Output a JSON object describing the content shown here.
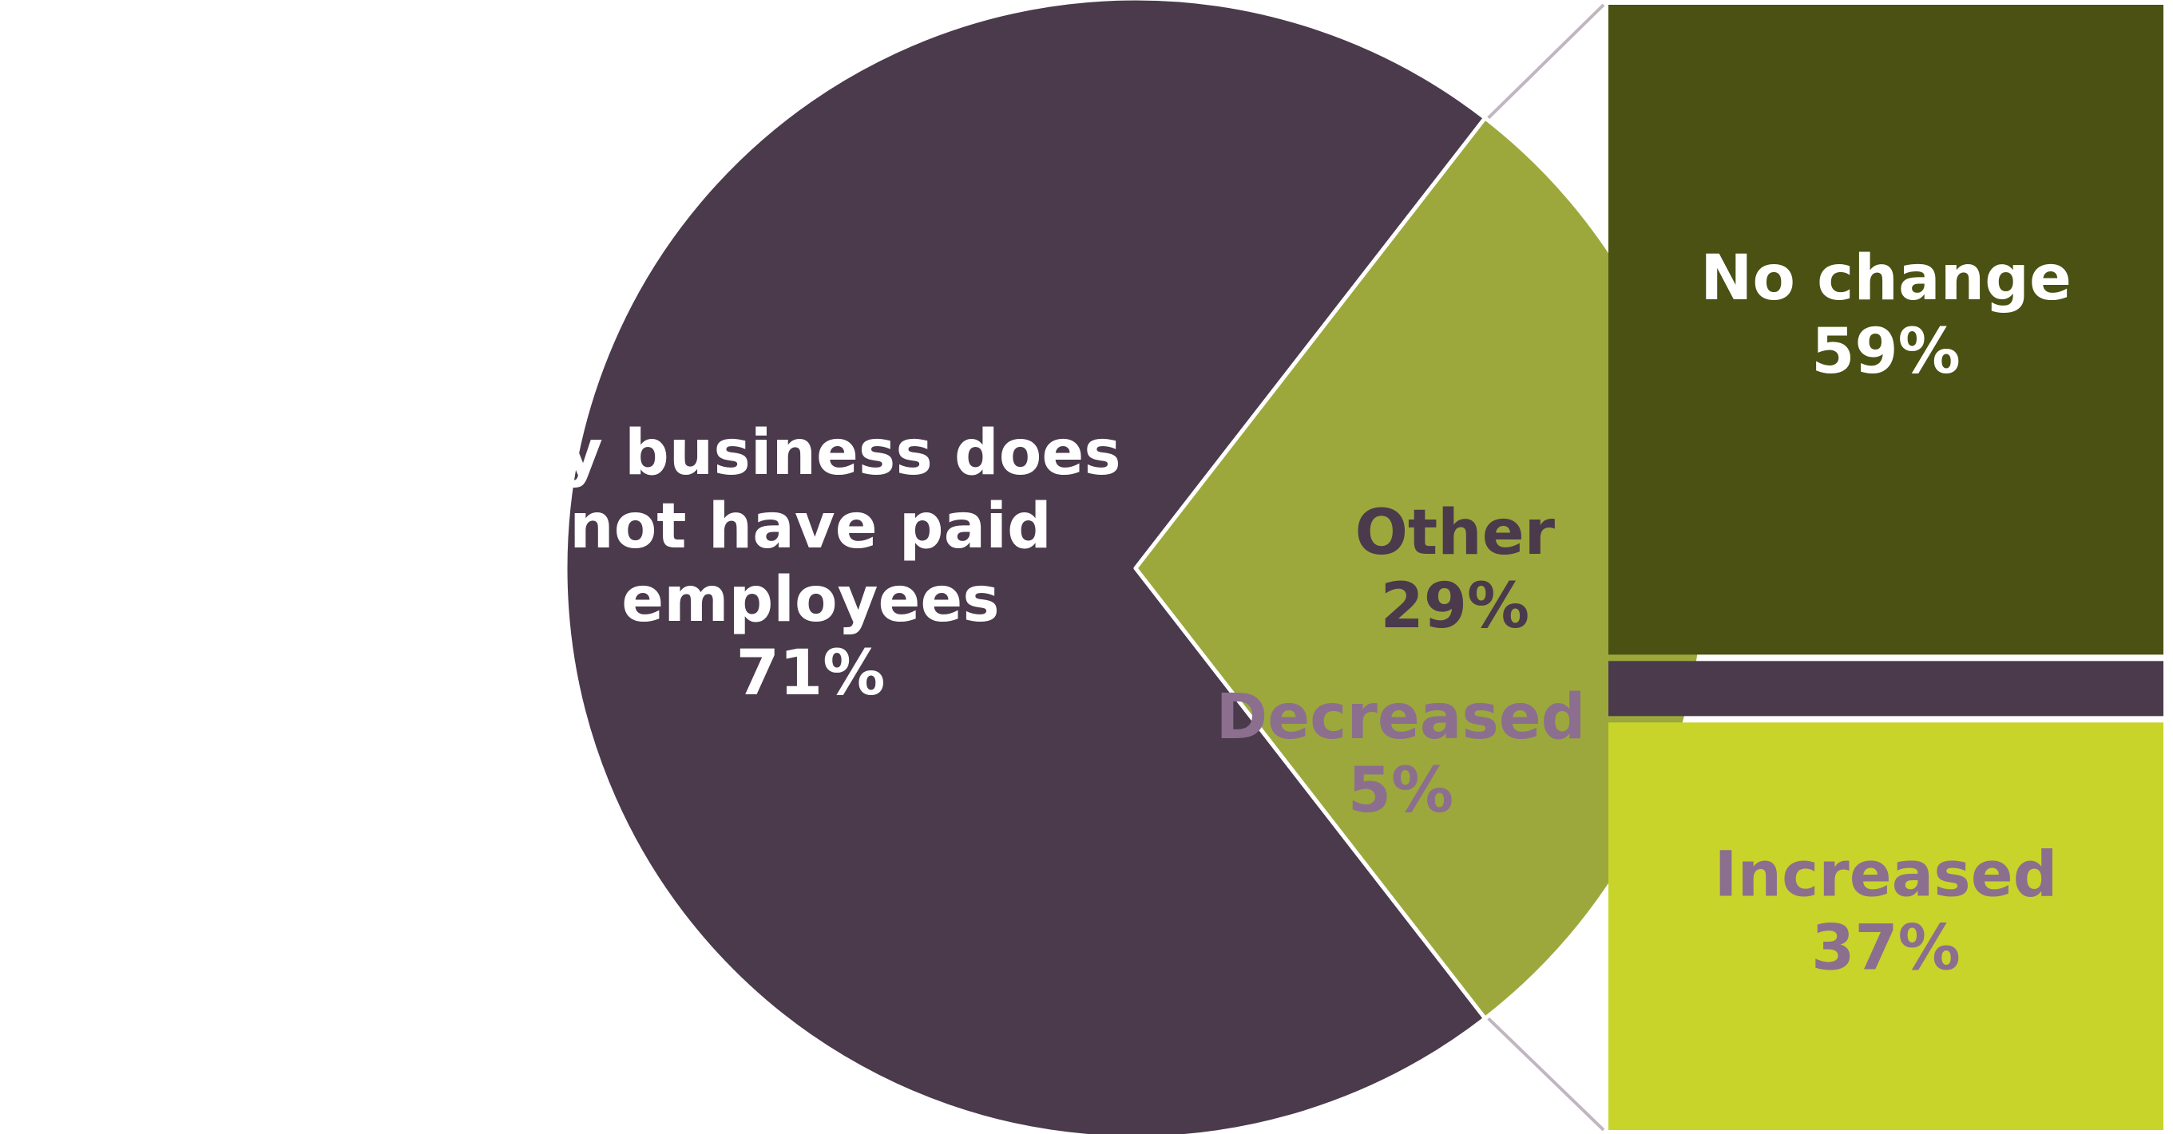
{
  "chart_data": {
    "type": "bar-of-pie",
    "pie": {
      "slices": [
        {
          "label": "My business does not have paid employees",
          "value": 71,
          "value_label": "71%",
          "color": "#4a3a4c",
          "text_color": "#ffffff"
        },
        {
          "label": "Other",
          "value": 29,
          "value_label": "29%",
          "color": "#9ca83c",
          "text_color": "#4a3a4c"
        }
      ]
    },
    "bar": {
      "breakdown_of": "Other",
      "segments": [
        {
          "label": "No change",
          "value": 59,
          "value_label": "59%",
          "color": "#4a5112",
          "text_color": "#ffffff"
        },
        {
          "label": "Decreased",
          "value": 5,
          "value_label": "5%",
          "color": "#4a3a4c",
          "text_color": "#8c6f8e"
        },
        {
          "label": "Increased",
          "value": 37,
          "value_label": "37%",
          "color": "#c8d42a",
          "text_color": "#8c6f8e"
        }
      ]
    },
    "connector_color": "#c0b6c0",
    "separator_color": "#ffffff"
  }
}
